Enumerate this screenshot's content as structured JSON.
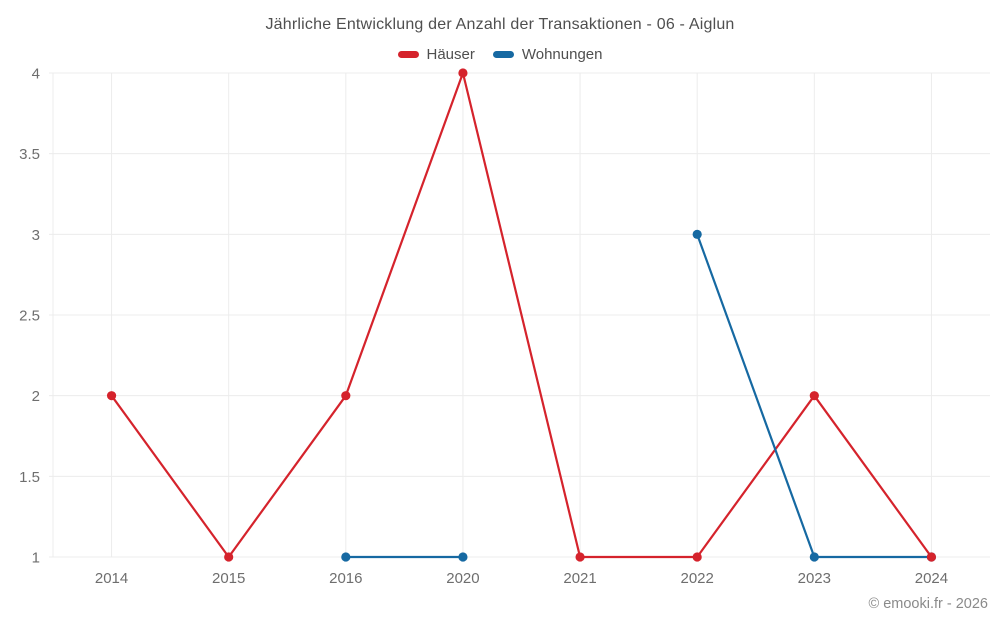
{
  "chart_data": {
    "type": "line",
    "title": "Jährliche Entwicklung der Anzahl der Transaktionen - 06 - Aiglun",
    "categories": [
      "2014",
      "2015",
      "2016",
      "2020",
      "2021",
      "2022",
      "2023",
      "2024"
    ],
    "series": [
      {
        "name": "Häuser",
        "color": "#d5232c",
        "values": [
          2,
          1,
          2,
          4,
          1,
          1,
          2,
          1
        ]
      },
      {
        "name": "Wohnungen",
        "color": "#1669a2",
        "values": [
          null,
          null,
          1,
          1,
          null,
          3,
          1,
          1
        ]
      }
    ],
    "xlabel": "",
    "ylabel": "",
    "ylim": [
      1,
      4
    ],
    "yticks": [
      1,
      1.5,
      2,
      2.5,
      3,
      3.5,
      4
    ],
    "grid": true,
    "legend_position": "top",
    "marker": "circle"
  },
  "colors": {
    "grid": "#ececec",
    "tick_text": "#6e6e6e",
    "title_text": "#4f4f4f",
    "footer_text": "#8a8a8a"
  },
  "footer": {
    "text": "© emooki.fr - 2026"
  }
}
